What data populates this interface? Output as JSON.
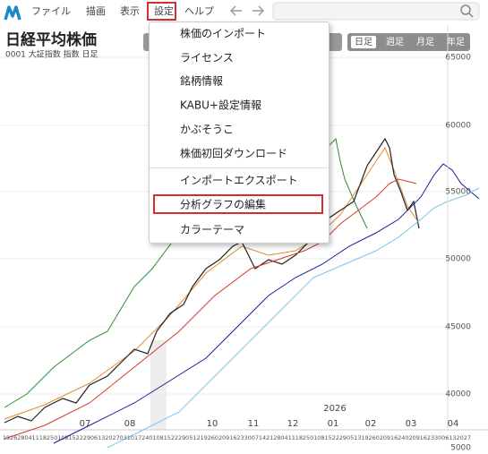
{
  "menubar": {
    "items": [
      "ファイル",
      "描画",
      "表示",
      "設定",
      "ヘルプ"
    ]
  },
  "header": {
    "title": "日経平均株価",
    "subtitle": "0001 大証指数 指数 日足"
  },
  "period_buttons": [
    "日足",
    "週足",
    "月足",
    "年足"
  ],
  "dropdown": {
    "items": [
      "株価のインポート",
      "ライセンス",
      "銘柄情報",
      "KABU+設定情報",
      "かぶそうこ",
      "株価初回ダウンロード",
      "インポートエクスポート",
      "分析グラフの編集",
      "カラーテーマ"
    ]
  },
  "chart": {
    "year_label": "2026",
    "y_axis_labels": [
      "65000",
      "60000",
      "55000",
      "50000",
      "45000",
      "40000",
      "5000"
    ],
    "month_labels": [
      "07",
      "08",
      "10",
      "11",
      "12",
      "01",
      "02",
      "03",
      "04"
    ],
    "day_labels": [
      "19",
      "26",
      "28",
      "04",
      "11",
      "18",
      "25",
      "01",
      "08",
      "15",
      "22",
      "29",
      "06",
      "13",
      "20",
      "27",
      "03",
      "10",
      "17",
      "24",
      "01",
      "08",
      "15",
      "22",
      "29",
      "05",
      "12",
      "19",
      "26",
      "02",
      "09",
      "16",
      "23",
      "30",
      "07",
      "14",
      "21",
      "28",
      "04",
      "11",
      "18",
      "25",
      "01",
      "08",
      "15",
      "22",
      "29",
      "05",
      "13",
      "19",
      "26",
      "02",
      "09",
      "16",
      "24",
      "02",
      "09",
      "16",
      "23",
      "30",
      "06",
      "13",
      "20",
      "27"
    ]
  }
}
